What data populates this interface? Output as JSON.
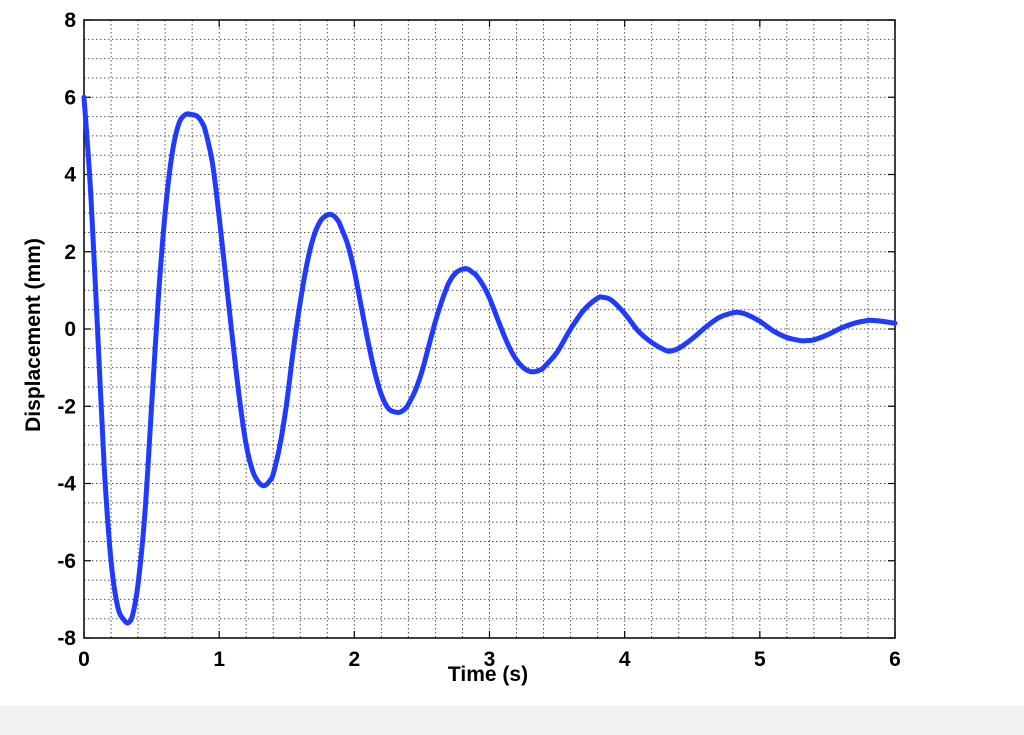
{
  "chart_data": {
    "type": "line",
    "title": "",
    "xlabel": "Time (s)",
    "ylabel": "Displacement (mm)",
    "xlim": [
      0,
      6
    ],
    "ylim": [
      -8,
      8
    ],
    "xticks": [
      "0",
      "1",
      "2",
      "3",
      "4",
      "5",
      "6"
    ],
    "yticks": [
      "8",
      "6",
      "4",
      "2",
      "0",
      "-2",
      "-4",
      "-6",
      "-8"
    ],
    "grid": true,
    "minor_grid": true,
    "legend": "none",
    "line_color": "#1f3bff",
    "series": [
      {
        "x": [
          0,
          0.05,
          0.1,
          0.15,
          0.2,
          0.25,
          0.3,
          0.33,
          0.36,
          0.4,
          0.45,
          0.5,
          0.55,
          0.6,
          0.65,
          0.7,
          0.75,
          0.8,
          0.84,
          0.88,
          0.9,
          0.95,
          1.0,
          1.05,
          1.1,
          1.15,
          1.2,
          1.25,
          1.3,
          1.34,
          1.38,
          1.4,
          1.45,
          1.5,
          1.55,
          1.6,
          1.65,
          1.7,
          1.75,
          1.8,
          1.84,
          1.88,
          1.9,
          1.95,
          2.0,
          2.05,
          2.1,
          2.15,
          2.2,
          2.25,
          2.3,
          2.34,
          2.38,
          2.4,
          2.45,
          2.5,
          2.55,
          2.6,
          2.65,
          2.7,
          2.75,
          2.8,
          2.84,
          2.88,
          2.9,
          2.95,
          3.0,
          3.05,
          3.1,
          3.15,
          3.2,
          3.25,
          3.3,
          3.34,
          3.38,
          3.4,
          3.5,
          3.6,
          3.7,
          3.8,
          3.84,
          3.9,
          4.0,
          4.1,
          4.2,
          4.3,
          4.34,
          4.4,
          4.5,
          4.6,
          4.7,
          4.8,
          4.84,
          4.9,
          5.0,
          5.1,
          5.2,
          5.3,
          5.34,
          5.4,
          5.5,
          5.6,
          5.7,
          5.8,
          5.84,
          5.9,
          6.0
        ],
        "y": [
          6.0,
          3.5,
          0.0,
          -3.6,
          -6.0,
          -7.2,
          -7.55,
          -7.6,
          -7.4,
          -6.6,
          -4.8,
          -2.0,
          0.8,
          3.0,
          4.5,
          5.3,
          5.55,
          5.55,
          5.5,
          5.3,
          5.1,
          4.3,
          2.9,
          1.3,
          -0.3,
          -1.8,
          -3.0,
          -3.7,
          -4.0,
          -4.05,
          -3.9,
          -3.75,
          -3.0,
          -1.9,
          -0.5,
          0.7,
          1.7,
          2.4,
          2.8,
          2.95,
          2.95,
          2.8,
          2.65,
          2.2,
          1.5,
          0.6,
          -0.3,
          -1.1,
          -1.7,
          -2.05,
          -2.15,
          -2.15,
          -2.05,
          -1.95,
          -1.6,
          -1.1,
          -0.45,
          0.2,
          0.75,
          1.2,
          1.45,
          1.55,
          1.55,
          1.45,
          1.4,
          1.15,
          0.8,
          0.35,
          -0.1,
          -0.5,
          -0.8,
          -1.0,
          -1.1,
          -1.1,
          -1.05,
          -1.0,
          -0.6,
          0.0,
          0.5,
          0.8,
          0.82,
          0.75,
          0.4,
          -0.05,
          -0.35,
          -0.55,
          -0.57,
          -0.5,
          -0.25,
          0.05,
          0.3,
          0.42,
          0.43,
          0.38,
          0.2,
          -0.05,
          -0.22,
          -0.3,
          -0.3,
          -0.28,
          -0.15,
          0.02,
          0.15,
          0.22,
          0.22,
          0.2,
          0.15
        ]
      }
    ]
  }
}
